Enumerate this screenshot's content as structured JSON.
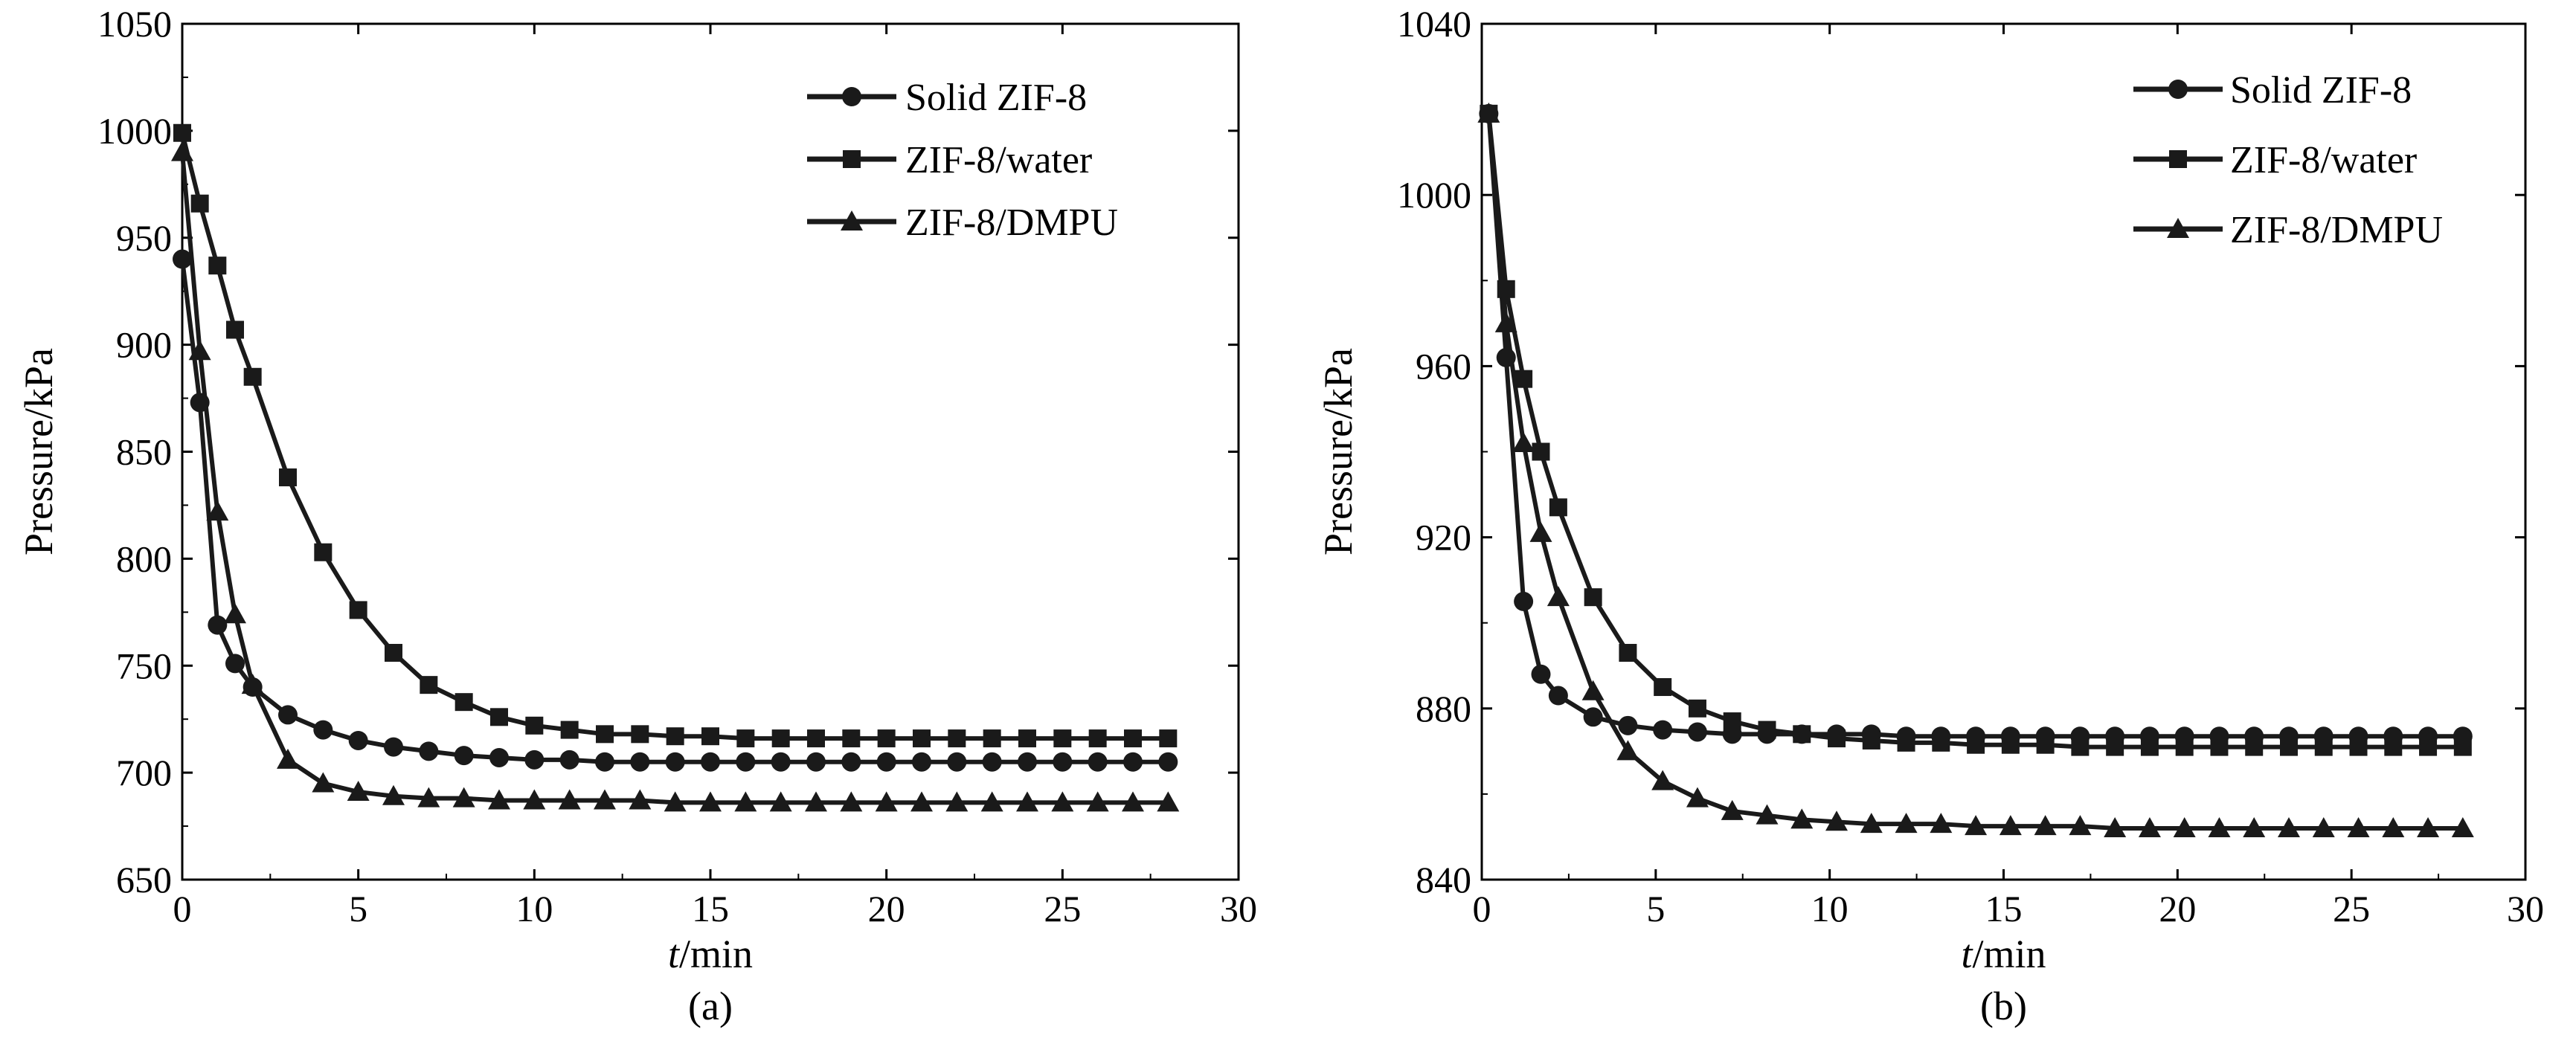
{
  "chart_data": [
    {
      "type": "line",
      "panel_label": "(a)",
      "xlabel_italic": "t",
      "xlabel_rest": "/min",
      "ylabel": "Pressure/kPa",
      "xlim": [
        0,
        30
      ],
      "ylim": [
        650,
        1050
      ],
      "xticks": [
        0,
        5,
        10,
        15,
        20,
        25,
        30
      ],
      "yticks": [
        650,
        700,
        750,
        800,
        850,
        900,
        950,
        1000,
        1050
      ],
      "grid": false,
      "legend_position": "top-right",
      "series": [
        {
          "name": "Solid ZIF-8",
          "marker": "circle",
          "x": [
            0,
            0.5,
            1,
            1.5,
            2,
            3,
            4,
            5,
            6,
            7,
            8,
            9,
            10,
            11,
            12,
            13,
            14,
            15,
            16,
            17,
            18,
            19,
            20,
            21,
            22,
            23,
            24,
            25,
            26,
            27,
            28
          ],
          "y": [
            940,
            873,
            769,
            751,
            740,
            727,
            720,
            715,
            712,
            710,
            708,
            707,
            706,
            706,
            705,
            705,
            705,
            705,
            705,
            705,
            705,
            705,
            705,
            705,
            705,
            705,
            705,
            705,
            705,
            705,
            705
          ]
        },
        {
          "name": "ZIF-8/water",
          "marker": "square",
          "x": [
            0,
            0.5,
            1,
            1.5,
            2,
            3,
            4,
            5,
            6,
            7,
            8,
            9,
            10,
            11,
            12,
            13,
            14,
            15,
            16,
            17,
            18,
            19,
            20,
            21,
            22,
            23,
            24,
            25,
            26,
            27,
            28
          ],
          "y": [
            999,
            966,
            937,
            907,
            885,
            838,
            803,
            776,
            756,
            741,
            733,
            726,
            722,
            720,
            718,
            718,
            717,
            717,
            716,
            716,
            716,
            716,
            716,
            716,
            716,
            716,
            716,
            716,
            716,
            716,
            716
          ]
        },
        {
          "name": "ZIF-8/DMPU",
          "marker": "triangle",
          "x": [
            0,
            0.5,
            1,
            1.5,
            2,
            3,
            4,
            5,
            6,
            7,
            8,
            9,
            10,
            11,
            12,
            13,
            14,
            15,
            16,
            17,
            18,
            19,
            20,
            21,
            22,
            23,
            24,
            25,
            26,
            27,
            28
          ],
          "y": [
            990,
            897,
            822,
            774,
            741,
            706,
            695,
            691,
            689,
            688,
            688,
            687,
            687,
            687,
            687,
            687,
            686,
            686,
            686,
            686,
            686,
            686,
            686,
            686,
            686,
            686,
            686,
            686,
            686,
            686,
            686
          ]
        }
      ]
    },
    {
      "type": "line",
      "panel_label": "(b)",
      "xlabel_italic": "t",
      "xlabel_rest": "/min",
      "ylabel": "Pressure/kPa",
      "xlim": [
        0,
        30
      ],
      "ylim": [
        840,
        1040
      ],
      "xticks": [
        0,
        5,
        10,
        15,
        20,
        25,
        30
      ],
      "yticks": [
        840,
        880,
        920,
        960,
        1000,
        1040
      ],
      "grid": false,
      "legend_position": "top-right",
      "series": [
        {
          "name": "Solid ZIF-8",
          "marker": "circle",
          "x": [
            0.2,
            0.7,
            1.2,
            1.7,
            2.2,
            3.2,
            4.2,
            5.2,
            6.2,
            7.2,
            8.2,
            9.2,
            10.2,
            11.2,
            12.2,
            13.2,
            14.2,
            15.2,
            16.2,
            17.2,
            18.2,
            19.2,
            20.2,
            21.2,
            22.2,
            23.2,
            24.2,
            25.2,
            26.2,
            27.2,
            28.2
          ],
          "y": [
            1019,
            962,
            905,
            888,
            883,
            878,
            876,
            875,
            874.5,
            874,
            874,
            874,
            874,
            874,
            873.5,
            873.5,
            873.5,
            873.5,
            873.5,
            873.5,
            873.5,
            873.5,
            873.5,
            873.5,
            873.5,
            873.5,
            873.5,
            873.5,
            873.5,
            873.5,
            873.5
          ]
        },
        {
          "name": "ZIF-8/water",
          "marker": "square",
          "x": [
            0.2,
            0.7,
            1.2,
            1.7,
            2.2,
            3.2,
            4.2,
            5.2,
            6.2,
            7.2,
            8.2,
            9.2,
            10.2,
            11.2,
            12.2,
            13.2,
            14.2,
            15.2,
            16.2,
            17.2,
            18.2,
            19.2,
            20.2,
            21.2,
            22.2,
            23.2,
            24.2,
            25.2,
            26.2,
            27.2,
            28.2
          ],
          "y": [
            1019,
            978,
            957,
            940,
            927,
            906,
            893,
            885,
            880,
            877,
            875,
            874,
            873,
            872.5,
            872,
            872,
            871.5,
            871.5,
            871.5,
            871,
            871,
            871,
            871,
            871,
            871,
            871,
            871,
            871,
            871,
            871,
            871
          ]
        },
        {
          "name": "ZIF-8/DMPU",
          "marker": "triangle",
          "x": [
            0.2,
            0.7,
            1.2,
            1.7,
            2.2,
            3.2,
            4.2,
            5.2,
            6.2,
            7.2,
            8.2,
            9.2,
            10.2,
            11.2,
            12.2,
            13.2,
            14.2,
            15.2,
            16.2,
            17.2,
            18.2,
            19.2,
            20.2,
            21.2,
            22.2,
            23.2,
            24.2,
            25.2,
            26.2,
            27.2,
            28.2
          ],
          "y": [
            1019,
            970,
            942,
            921,
            906,
            884,
            870,
            863,
            859,
            856,
            855,
            854,
            853.5,
            853,
            853,
            853,
            852.5,
            852.5,
            852.5,
            852.5,
            852,
            852,
            852,
            852,
            852,
            852,
            852,
            852,
            852,
            852,
            852
          ]
        }
      ]
    }
  ]
}
